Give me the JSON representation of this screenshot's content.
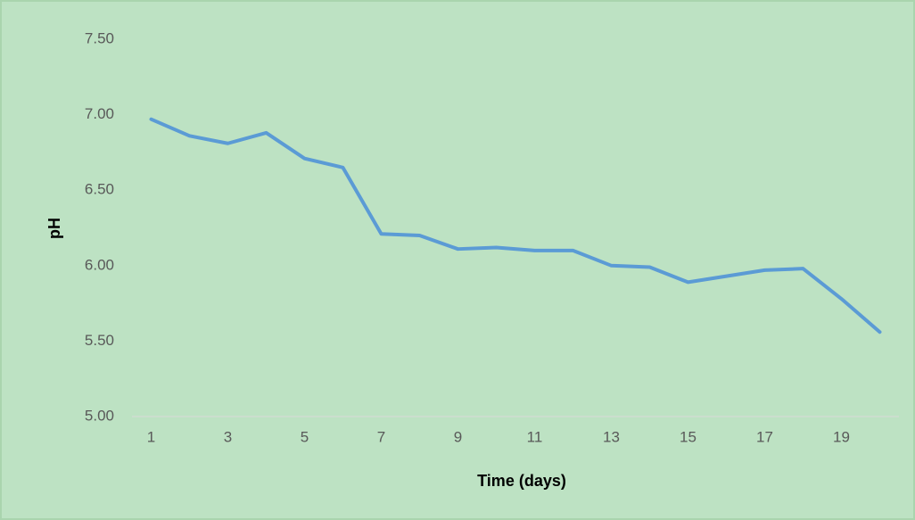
{
  "chart_data": {
    "type": "line",
    "xlabel": "Time (days)",
    "ylabel": "pH",
    "categories": [
      1,
      null,
      3,
      null,
      5,
      null,
      7,
      null,
      9,
      null,
      11,
      null,
      13,
      null,
      15,
      null,
      17,
      null,
      19,
      null
    ],
    "series": [
      {
        "name": "pH",
        "color": "#5b9bd5",
        "values": [
          6.97,
          6.86,
          6.81,
          6.88,
          6.71,
          6.65,
          6.21,
          6.2,
          6.11,
          6.12,
          6.1,
          6.1,
          6.0,
          5.99,
          5.89,
          5.93,
          5.97,
          5.98,
          5.78,
          5.56
        ]
      }
    ],
    "ylim": [
      5,
      7.5
    ],
    "yticks": [
      {
        "value": 5,
        "label": "5.00"
      },
      {
        "value": 5.5,
        "label": "5.50"
      },
      {
        "value": 6,
        "label": "6.00"
      },
      {
        "value": 6.5,
        "label": "6.50"
      },
      {
        "value": 7,
        "label": "7.00"
      },
      {
        "value": 7.5,
        "label": "7.50"
      }
    ],
    "grid": false
  }
}
